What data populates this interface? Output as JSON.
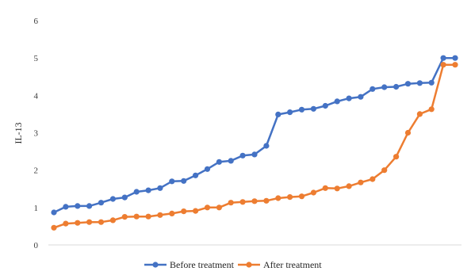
{
  "chart_data": {
    "type": "line",
    "ylabel": "IL-13",
    "xlabel": "",
    "ylim": [
      0,
      6
    ],
    "yticks": [
      0,
      1,
      2,
      3,
      4,
      5,
      6
    ],
    "grid": false,
    "legend_position": "bottom",
    "x": [
      1,
      2,
      3,
      4,
      5,
      6,
      7,
      8,
      9,
      10,
      11,
      12,
      13,
      14,
      15,
      16,
      17,
      18,
      19,
      20,
      21,
      22,
      23,
      24,
      25,
      26,
      27,
      28,
      29,
      30,
      31,
      32,
      33,
      34,
      35
    ],
    "series": [
      {
        "name": "Before treatment",
        "color": "#4472C4",
        "values": [
          0.87,
          1.02,
          1.04,
          1.04,
          1.13,
          1.23,
          1.27,
          1.42,
          1.46,
          1.52,
          1.7,
          1.71,
          1.86,
          2.03,
          2.22,
          2.25,
          2.39,
          2.42,
          2.65,
          3.49,
          3.55,
          3.62,
          3.64,
          3.72,
          3.84,
          3.92,
          3.96,
          4.17,
          4.22,
          4.23,
          4.31,
          4.33,
          4.34,
          5.0,
          5.0
        ]
      },
      {
        "name": "After treatment",
        "color": "#ED7D31",
        "values": [
          0.46,
          0.57,
          0.59,
          0.61,
          0.61,
          0.66,
          0.75,
          0.76,
          0.76,
          0.8,
          0.84,
          0.9,
          0.91,
          1.0,
          1.0,
          1.13,
          1.15,
          1.17,
          1.18,
          1.25,
          1.28,
          1.3,
          1.4,
          1.52,
          1.51,
          1.57,
          1.67,
          1.76,
          2.0,
          2.36,
          3.0,
          3.5,
          3.63,
          4.82,
          4.82
        ]
      }
    ]
  }
}
